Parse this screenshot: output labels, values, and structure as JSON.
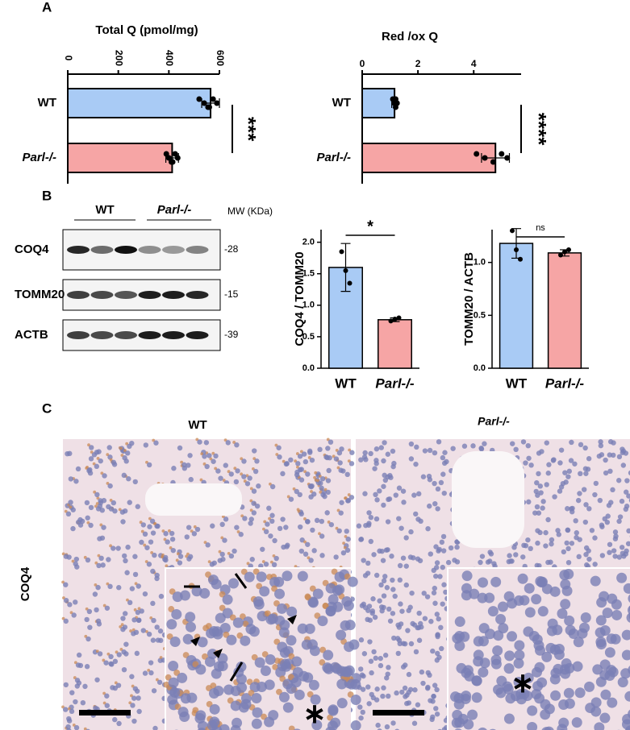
{
  "chart_data": [
    {
      "type": "bar",
      "orientation": "horizontal",
      "title": "Total Q (pmol/mg)",
      "categories": [
        "WT",
        "Parl-/-"
      ],
      "values": [
        565,
        413
      ],
      "errors": [
        35,
        25
      ],
      "points": [
        [
          520,
          540,
          555,
          575,
          590,
          560
        ],
        [
          390,
          400,
          410,
          425,
          435,
          415
        ]
      ],
      "colors": [
        "#a9cbf5",
        "#f6a5a5"
      ],
      "xlim": [
        0,
        600
      ],
      "xticks": [
        0,
        200,
        400,
        600
      ],
      "annotation": "***"
    },
    {
      "type": "bar",
      "orientation": "horizontal",
      "title": "Red /ox Q",
      "categories": [
        "WT",
        "Parl-/-"
      ],
      "values": [
        1.16,
        4.78
      ],
      "errors": [
        0.1,
        0.5
      ],
      "points": [
        [
          1.1,
          1.15,
          1.2,
          1.2,
          1.25
        ],
        [
          4.1,
          4.4,
          4.7,
          5.0,
          5.2
        ]
      ],
      "colors": [
        "#a9cbf5",
        "#f6a5a5"
      ],
      "xlim": [
        0,
        5.7
      ],
      "xticks": [
        0,
        2,
        4
      ],
      "annotation": "****"
    },
    {
      "type": "bar",
      "orientation": "vertical",
      "ylabel": "COQ4 / TOMM20",
      "categories": [
        "WT",
        "Parl-/-"
      ],
      "values": [
        1.6,
        0.77
      ],
      "errors": [
        0.38,
        0.03
      ],
      "points": [
        [
          1.85,
          1.55,
          1.35
        ],
        [
          0.75,
          0.78,
          0.8
        ]
      ],
      "colors": [
        "#a9cbf5",
        "#f6a5a5"
      ],
      "ylim": [
        0,
        2.2
      ],
      "yticks": [
        {
          "value": 0,
          "label": "0.0"
        },
        {
          "value": 0.5,
          "label": "0.5"
        },
        {
          "value": 1,
          "label": "1.0"
        },
        {
          "value": 1.5,
          "label": "1.5"
        },
        {
          "value": 2,
          "label": "2.0"
        }
      ],
      "annotation": "*"
    },
    {
      "type": "bar",
      "orientation": "vertical",
      "ylabel": "TOMM20 / ACTB",
      "categories": [
        "WT",
        "Parl-/-"
      ],
      "values": [
        1.18,
        1.09
      ],
      "errors": [
        0.14,
        0.03
      ],
      "points": [
        [
          1.3,
          1.12,
          1.03
        ],
        [
          1.07,
          1.1,
          1.12
        ]
      ],
      "colors": [
        "#a9cbf5",
        "#f6a5a5"
      ],
      "ylim": [
        0,
        1.31
      ],
      "yticks": [
        {
          "value": 0,
          "label": "0.0"
        },
        {
          "value": 0.5,
          "label": "0.5"
        },
        {
          "value": 1,
          "label": "1.0"
        }
      ],
      "annotation": "ns"
    }
  ],
  "figure": {
    "panels": [
      "A",
      "B",
      "C"
    ],
    "blot": {
      "groups": [
        "WT",
        "Parl-/-"
      ],
      "mw_title": "MW (KDa)",
      "rows": [
        {
          "label": "COQ4",
          "mw": "-28"
        },
        {
          "label": "TOMM20",
          "mw": "-15"
        },
        {
          "label": "ACTB",
          "mw": "-39"
        }
      ]
    },
    "histology": {
      "columns": [
        "WT",
        "Parl-/-"
      ],
      "row_label": "COQ4"
    }
  }
}
